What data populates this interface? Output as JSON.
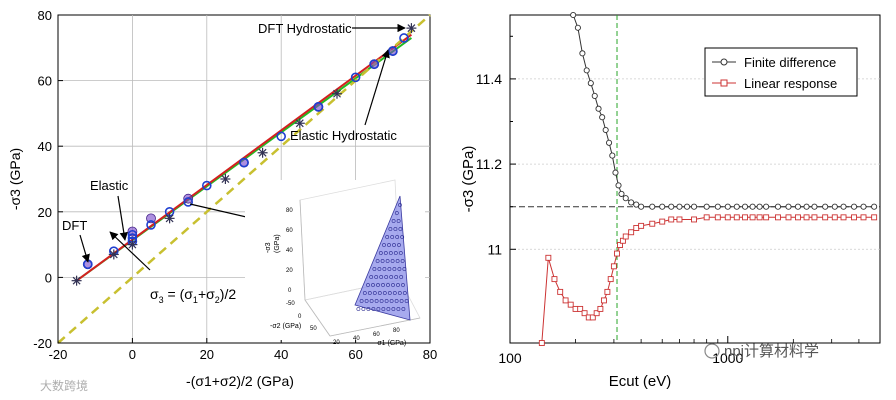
{
  "chart_data": [
    {
      "type": "scatter",
      "panel": "left",
      "xlabel": "-(σ1+σ2)/2 (GPa)",
      "ylabel": "-σ3 (GPa)",
      "xlim": [
        -20,
        80
      ],
      "ylim": [
        -20,
        80
      ],
      "xticks": [
        "-20",
        "0",
        "20",
        "40",
        "60",
        "80"
      ],
      "yticks": [
        "-20",
        "0",
        "20",
        "40",
        "60",
        "80"
      ],
      "grid": true,
      "lines": [
        {
          "name": "Green",
          "color": "#22bb22",
          "x": [
            -15,
            75
          ],
          "y": [
            -1,
            73
          ]
        },
        {
          "name": "Red",
          "color": "#d42020",
          "x": [
            -15,
            75
          ],
          "y": [
            -1,
            74
          ]
        },
        {
          "name": "σ3 = (σ1+σ2)/2",
          "color": "#c8c030",
          "dashed": true,
          "x": [
            -20,
            80
          ],
          "y": [
            -20,
            80
          ]
        }
      ],
      "points_blue": {
        "x": [
          -12,
          -5,
          0,
          0,
          0,
          5,
          10,
          15,
          20,
          30,
          40,
          50,
          60,
          65,
          70,
          73
        ],
        "y": [
          4,
          8,
          11,
          12,
          13,
          16,
          20,
          23,
          28,
          35,
          43,
          52,
          61,
          65,
          69,
          73
        ]
      },
      "points_star": {
        "x": [
          -15,
          -5,
          0,
          10,
          25,
          35,
          45,
          55,
          75
        ],
        "y": [
          -1,
          7,
          10,
          18,
          30,
          38,
          47,
          56,
          76
        ]
      },
      "points_purple": {
        "x": [
          -12,
          0,
          5,
          15,
          30,
          50,
          65,
          70
        ],
        "y": [
          4,
          14,
          18,
          24,
          35,
          52,
          65,
          69
        ]
      },
      "annotations": [
        "DFT Hydrostatic",
        "Elastic Hydrostatic",
        "Elastic",
        "DFT"
      ],
      "equation": {
        "main": "σ",
        "sub": "3",
        "rest": " = (σ",
        "sub1": "1",
        "plus": "+σ",
        "sub2": "2",
        "tail": ")/2"
      },
      "inset": {
        "labels": {
          "sigma3": "-σ3",
          "gpa": "(GPa)",
          "sigma2": "-σ2 (GPa)",
          "sigma1": "-σ1 (GPa)"
        },
        "zticks": [
          "80",
          "60",
          "40",
          "20",
          "0"
        ],
        "ticks2": [
          "-50",
          "0",
          "50"
        ],
        "ticks1": [
          "20",
          "40",
          "60",
          "80"
        ]
      }
    },
    {
      "type": "line",
      "panel": "right",
      "xlabel": "Ecut (eV)",
      "ylabel": "-σ3 (GPa)",
      "xscale": "log",
      "xlim": [
        100,
        5000
      ],
      "ylim": [
        10.78,
        11.55
      ],
      "xticks": [
        "100",
        "1000"
      ],
      "yticks": [
        "11",
        "11.2",
        "11.4"
      ],
      "hline": {
        "y": 11.1,
        "style": "dashed",
        "color": "#333333"
      },
      "vline": {
        "x": 310,
        "style": "dashed",
        "color": "#2aa52a"
      },
      "series": [
        {
          "name": "Finite difference",
          "color": "#333333",
          "marker": "circle",
          "x": [
            195,
            205,
            215,
            225,
            235,
            245,
            255,
            265,
            275,
            285,
            295,
            305,
            315,
            325,
            340,
            360,
            380,
            400,
            450,
            500,
            550,
            600,
            650,
            700,
            800,
            900,
            1000,
            1100,
            1200,
            1300,
            1400,
            1500,
            1700,
            1900,
            2100,
            2300,
            2500,
            2800,
            3100,
            3400,
            3800,
            4200,
            4700
          ],
          "y": [
            11.55,
            11.52,
            11.46,
            11.42,
            11.39,
            11.36,
            11.33,
            11.31,
            11.28,
            11.25,
            11.22,
            11.18,
            11.15,
            11.13,
            11.12,
            11.11,
            11.105,
            11.1,
            11.1,
            11.1,
            11.1,
            11.1,
            11.1,
            11.1,
            11.1,
            11.1,
            11.1,
            11.1,
            11.1,
            11.1,
            11.1,
            11.1,
            11.1,
            11.1,
            11.1,
            11.1,
            11.1,
            11.1,
            11.1,
            11.1,
            11.1,
            11.1,
            11.1
          ]
        },
        {
          "name": "Linear response",
          "color": "#cc3333",
          "marker": "square",
          "x": [
            140,
            150,
            160,
            170,
            180,
            190,
            200,
            210,
            220,
            230,
            240,
            250,
            260,
            270,
            280,
            290,
            300,
            310,
            320,
            330,
            340,
            360,
            380,
            400,
            450,
            500,
            550,
            600,
            700,
            800,
            900,
            1000,
            1100,
            1200,
            1300,
            1400,
            1500,
            1700,
            1900,
            2100,
            2300,
            2500,
            2800,
            3100,
            3400,
            3800,
            4200,
            4700
          ],
          "y": [
            10.78,
            10.98,
            10.93,
            10.9,
            10.88,
            10.87,
            10.86,
            10.86,
            10.85,
            10.84,
            10.84,
            10.85,
            10.86,
            10.88,
            10.9,
            10.93,
            10.96,
            10.99,
            11.01,
            11.02,
            11.03,
            11.04,
            11.05,
            11.055,
            11.06,
            11.065,
            11.07,
            11.07,
            11.07,
            11.075,
            11.075,
            11.075,
            11.075,
            11.075,
            11.075,
            11.075,
            11.075,
            11.075,
            11.075,
            11.075,
            11.075,
            11.075,
            11.075,
            11.075,
            11.075,
            11.075,
            11.075,
            11.075
          ]
        }
      ]
    }
  ],
  "watermarks": {
    "left": "大数跨境",
    "right": "npj计算材料学"
  }
}
